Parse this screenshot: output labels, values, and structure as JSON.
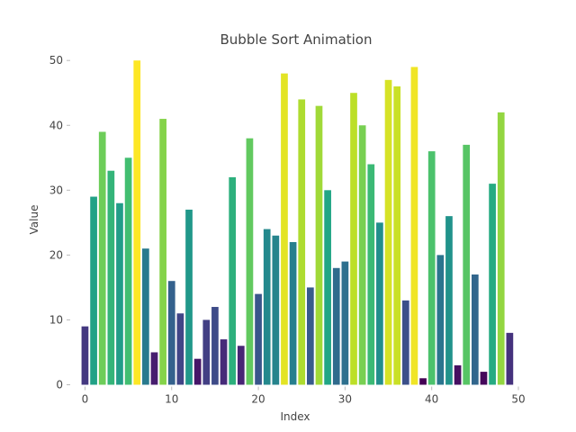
{
  "chart_data": {
    "type": "bar",
    "title": "Bubble Sort Animation",
    "xlabel": "Index",
    "ylabel": "Value",
    "xlim": [
      -1.5,
      50
    ],
    "ylim": [
      0,
      51
    ],
    "x_ticks": [
      0,
      10,
      20,
      30,
      40,
      50
    ],
    "y_ticks": [
      0,
      10,
      20,
      30,
      40,
      50
    ],
    "grid": false,
    "colormap": "viridis",
    "color_range": [
      1,
      50
    ],
    "x": [
      0,
      1,
      2,
      3,
      4,
      5,
      6,
      7,
      8,
      9,
      10,
      11,
      12,
      13,
      14,
      15,
      16,
      17,
      18,
      19,
      20,
      21,
      22,
      23,
      24,
      25,
      26,
      27,
      28,
      29,
      30,
      31,
      32,
      33,
      34,
      35,
      36,
      37,
      38,
      39,
      40,
      41,
      42,
      43,
      44,
      45,
      46,
      47,
      48,
      49
    ],
    "values": [
      9,
      29,
      39,
      33,
      28,
      35,
      50,
      21,
      5,
      41,
      16,
      11,
      27,
      4,
      10,
      12,
      7,
      32,
      6,
      38,
      14,
      24,
      23,
      48,
      22,
      44,
      15,
      43,
      30,
      18,
      19,
      45,
      40,
      34,
      25,
      47,
      46,
      13,
      49,
      1,
      36,
      20,
      26,
      3,
      37,
      17,
      2,
      31,
      42,
      8
    ]
  }
}
